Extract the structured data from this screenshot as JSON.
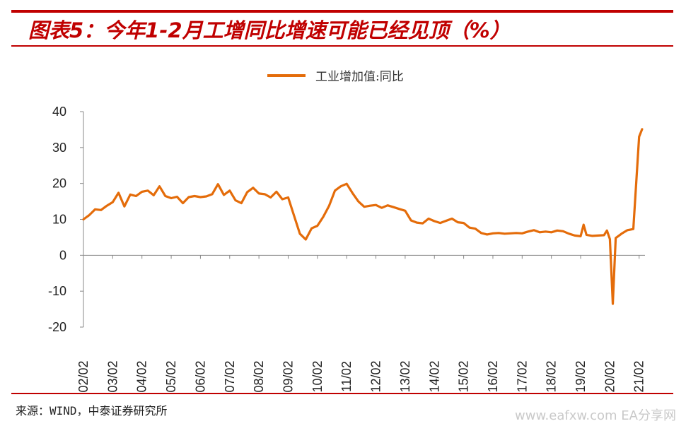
{
  "title": "图表5：今年1-2月工增同比增速可能已经见顶（%）",
  "source": "来源：WIND，中泰证券研究所",
  "watermark": "www.eafxw.com  EA分享网",
  "colors": {
    "brand": "#c00000",
    "series": "#e46c0a"
  },
  "chart_data": {
    "type": "line",
    "title": "",
    "xlabel": "",
    "ylabel": "",
    "ylim": [
      -20,
      40
    ],
    "yticks": [
      40,
      30,
      20,
      10,
      0,
      -10,
      -20
    ],
    "x_ticks": [
      "02/02",
      "03/02",
      "04/02",
      "05/02",
      "06/02",
      "07/02",
      "08/02",
      "09/02",
      "10/02",
      "11/02",
      "12/02",
      "13/02",
      "14/02",
      "15/02",
      "16/02",
      "17/02",
      "18/02",
      "19/02",
      "20/02",
      "21/02"
    ],
    "legend": {
      "position": "top-center"
    },
    "series": [
      {
        "name": "工业增加值:同比",
        "x": [
          2002.0,
          2002.2,
          2002.4,
          2002.6,
          2002.8,
          2003.0,
          2003.2,
          2003.4,
          2003.6,
          2003.8,
          2004.0,
          2004.2,
          2004.4,
          2004.6,
          2004.8,
          2005.0,
          2005.2,
          2005.4,
          2005.6,
          2005.8,
          2006.0,
          2006.2,
          2006.4,
          2006.6,
          2006.8,
          2007.0,
          2007.2,
          2007.4,
          2007.6,
          2007.8,
          2008.0,
          2008.2,
          2008.4,
          2008.6,
          2008.8,
          2009.0,
          2009.2,
          2009.4,
          2009.6,
          2009.8,
          2010.0,
          2010.2,
          2010.4,
          2010.6,
          2010.8,
          2011.0,
          2011.2,
          2011.4,
          2011.6,
          2011.8,
          2012.0,
          2012.2,
          2012.4,
          2012.6,
          2012.8,
          2013.0,
          2013.2,
          2013.4,
          2013.6,
          2013.8,
          2014.0,
          2014.2,
          2014.4,
          2014.6,
          2014.8,
          2015.0,
          2015.2,
          2015.4,
          2015.6,
          2015.8,
          2016.0,
          2016.2,
          2016.4,
          2016.6,
          2016.8,
          2017.0,
          2017.2,
          2017.4,
          2017.6,
          2017.8,
          2018.0,
          2018.2,
          2018.4,
          2018.6,
          2018.8,
          2019.0,
          2019.1,
          2019.2,
          2019.4,
          2019.6,
          2019.8,
          2019.9,
          2020.0,
          2020.1,
          2020.2,
          2020.4,
          2020.6,
          2020.8,
          2021.0,
          2021.1
        ],
        "y": [
          10.0,
          11.2,
          12.8,
          12.6,
          13.8,
          14.8,
          17.4,
          13.6,
          16.9,
          16.5,
          17.7,
          18.0,
          16.7,
          19.2,
          16.5,
          15.9,
          16.3,
          14.5,
          16.2,
          16.5,
          16.2,
          16.4,
          17.0,
          19.8,
          16.8,
          18.0,
          15.3,
          14.5,
          17.6,
          18.8,
          17.2,
          17.0,
          16.1,
          17.7,
          15.6,
          16.1,
          11.0,
          6.0,
          4.4,
          7.5,
          8.2,
          10.7,
          13.8,
          18.0,
          19.2,
          19.9,
          17.3,
          15.0,
          13.5,
          13.8,
          14.0,
          13.2,
          13.9,
          13.4,
          12.9,
          12.4,
          9.7,
          9.1,
          8.9,
          10.2,
          9.5,
          9.0,
          9.6,
          10.2,
          9.2,
          9.0,
          7.7,
          7.4,
          6.2,
          5.8,
          6.1,
          6.2,
          6.0,
          6.1,
          6.2,
          6.1,
          6.6,
          7.0,
          6.4,
          6.6,
          6.4,
          6.9,
          6.7,
          6.0,
          5.5,
          5.3,
          8.5,
          5.7,
          5.4,
          5.5,
          5.6,
          6.9,
          4.5,
          -13.5,
          4.8,
          6.0,
          7.0,
          7.3,
          33.0,
          35.1
        ]
      }
    ]
  }
}
